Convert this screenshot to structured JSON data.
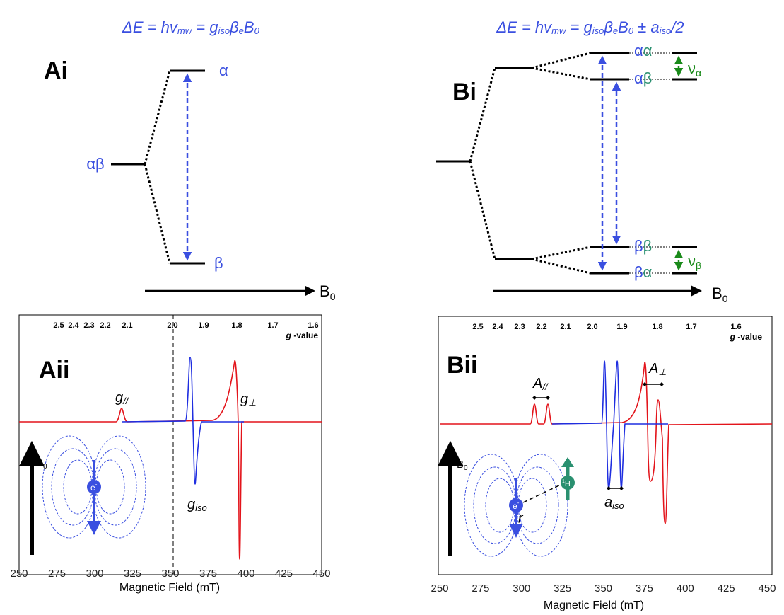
{
  "panel_a": {
    "formula": [
      "ΔE = hv",
      "mw",
      " = g",
      "iso",
      "β",
      "e",
      "B",
      "0"
    ],
    "label_i": "Ai",
    "level_start": "αβ",
    "level_upper": "α",
    "level_lower": "β",
    "field_label": [
      "B",
      "0"
    ],
    "label_ii": "Aii",
    "g_ticks": [
      "2.5",
      "2.4",
      "2.3",
      "2.2",
      "2.1",
      "2.0",
      "1.9",
      "1.8",
      "1.7",
      "1.6"
    ],
    "g_axis_label": [
      "g",
      " -value"
    ],
    "x_ticks": [
      250,
      275,
      300,
      325,
      350,
      375,
      400,
      425,
      450
    ],
    "x_title": "Magnetic Field (mT)",
    "g_par": [
      "g",
      "//"
    ],
    "g_perp": [
      "g",
      "⊥"
    ],
    "g_iso": [
      "g",
      "iso"
    ],
    "b0": [
      "B",
      "0"
    ],
    "electron": [
      "e",
      "-"
    ]
  },
  "panel_b": {
    "formula": [
      "ΔE = hv",
      "mw",
      " = g",
      "iso",
      "β",
      "e",
      "B",
      "0",
      " ± a",
      "iso",
      "/2"
    ],
    "label_i": "Bi",
    "levels": [
      [
        "α",
        "α"
      ],
      [
        "α",
        "β"
      ],
      [
        "β",
        "β"
      ],
      [
        "β",
        "α"
      ]
    ],
    "nu_alpha": [
      "ν",
      "α"
    ],
    "nu_beta": [
      "ν",
      "β"
    ],
    "field_label": [
      "B",
      "0"
    ],
    "label_ii": "Bii",
    "g_ticks": [
      "2.5",
      "2.4",
      "2.3",
      "2.2",
      "2.1",
      "2.0",
      "1.9",
      "1.8",
      "1.7",
      "1.6"
    ],
    "g_axis_label": [
      "g",
      " -value"
    ],
    "x_ticks": [
      250,
      275,
      300,
      325,
      350,
      375,
      400,
      425,
      450
    ],
    "x_title": "Magnetic Field (mT)",
    "a_par": [
      "A",
      "//"
    ],
    "a_perp": [
      "A",
      "⊥"
    ],
    "a_iso": [
      "a",
      "iso"
    ],
    "r": "r",
    "proton": [
      "1",
      "H"
    ],
    "b0": [
      "B",
      "0"
    ],
    "electron": [
      "e",
      "-"
    ]
  }
}
